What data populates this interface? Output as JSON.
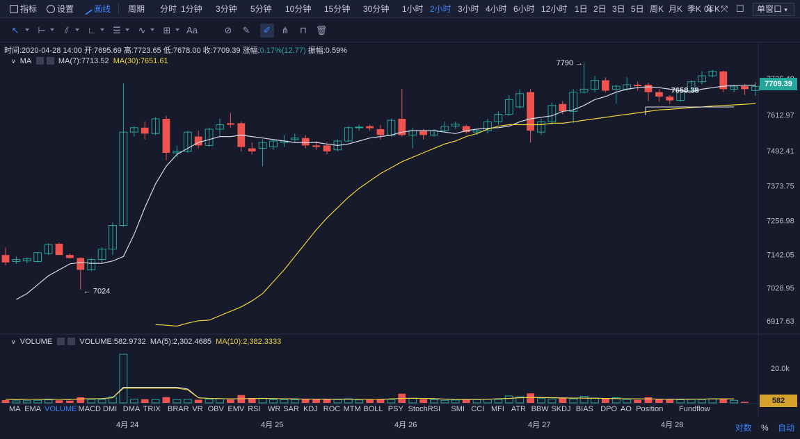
{
  "toolbar": {
    "indicators_label": "指标",
    "settings_label": "设置",
    "draw_label": "画线",
    "period_label": "周期",
    "intervals": [
      "分时",
      "1分钟",
      "3分钟",
      "5分钟",
      "10分钟",
      "15分钟",
      "30分钟",
      "1小时",
      "2小时",
      "3小时",
      "4小时",
      "6小时",
      "12小时",
      "1日",
      "2日",
      "3日",
      "5日",
      "周K",
      "月K",
      "季K",
      "年K"
    ],
    "active_interval": "2小时",
    "countdown": "0s",
    "window_mode": "单窗口"
  },
  "info_line": {
    "time": "时间:2020-04-28 14:00",
    "open": "开:7695.69",
    "high": "高:7723.65",
    "low": "低:7678.00",
    "close": "收:7709.39",
    "change_label": "涨幅:",
    "change_value": "0.17%(12.77)",
    "amplitude": "振幅:0.59%"
  },
  "ma_legend": {
    "name": "MA",
    "ma7": "MA(7):7713.52",
    "ma30": "MA(30):7651.61"
  },
  "volume_legend": {
    "name": "VOLUME",
    "volume": "VOLUME:582.9732",
    "ma5": "MA(5):2,302.4685",
    "ma10": "MA(10):2,382.3333"
  },
  "price_axis": [
    "7735.48",
    "7612.97",
    "7492.41",
    "7373.75",
    "7256.98",
    "7142.05",
    "7028.95",
    "6917.63"
  ],
  "last_price": "7709.39",
  "volume_axis": [
    "20.0k"
  ],
  "last_volume": "582",
  "annotations": {
    "high_label": "7790",
    "low_label": "7024",
    "overlap_label": "7658.38"
  },
  "indicator_tabs": [
    "MA",
    "EMA",
    "VOLUME",
    "MACD",
    "DMI",
    "DMA",
    "TRIX",
    "BRAR",
    "VR",
    "OBV",
    "EMV",
    "RSI",
    "WR",
    "SAR",
    "KDJ",
    "ROC",
    "MTM",
    "BOLL",
    "PSY",
    "StochRSI",
    "SMI",
    "CCI",
    "MFI",
    "ATR",
    "BBW",
    "SKDJ",
    "BIAS",
    "DPO",
    "AO",
    "Position",
    "Fundflow"
  ],
  "active_indicator": "VOLUME",
  "date_labels": [
    "4月 24",
    "4月 25",
    "4月 26",
    "4月 27",
    "4月 28"
  ],
  "bottom_right": {
    "log": "对数",
    "percent": "%",
    "auto": "自动"
  },
  "colors": {
    "up": "#26a69a",
    "down": "#ef5350",
    "ma7": "#d8dbe6",
    "ma30": "#f0d43a",
    "accent": "#3b82f6",
    "bg": "#161a2b"
  },
  "chart_data": {
    "type": "candlestick",
    "price_range": [
      6880,
      7790
    ],
    "candles": [
      {
        "o": 7140,
        "h": 7165,
        "l": 7105,
        "c": 7115
      },
      {
        "o": 7118,
        "h": 7135,
        "l": 7110,
        "c": 7125
      },
      {
        "o": 7120,
        "h": 7132,
        "l": 7112,
        "c": 7128
      },
      {
        "o": 7118,
        "h": 7150,
        "l": 7115,
        "c": 7148
      },
      {
        "o": 7145,
        "h": 7180,
        "l": 7140,
        "c": 7175
      },
      {
        "o": 7178,
        "h": 7182,
        "l": 7140,
        "c": 7140
      },
      {
        "o": 7140,
        "h": 7145,
        "l": 7128,
        "c": 7130
      },
      {
        "o": 7130,
        "h": 7132,
        "l": 7024,
        "c": 7090
      },
      {
        "o": 7090,
        "h": 7130,
        "l": 7085,
        "c": 7125
      },
      {
        "o": 7125,
        "h": 7165,
        "l": 7115,
        "c": 7160
      },
      {
        "o": 7160,
        "h": 7250,
        "l": 7140,
        "c": 7240
      },
      {
        "o": 7240,
        "h": 7720,
        "l": 7235,
        "c": 7555
      },
      {
        "o": 7555,
        "h": 7575,
        "l": 7540,
        "c": 7570
      },
      {
        "o": 7570,
        "h": 7590,
        "l": 7530,
        "c": 7550
      },
      {
        "o": 7550,
        "h": 7605,
        "l": 7545,
        "c": 7600
      },
      {
        "o": 7600,
        "h": 7610,
        "l": 7460,
        "c": 7485
      },
      {
        "o": 7485,
        "h": 7510,
        "l": 7470,
        "c": 7490
      },
      {
        "o": 7490,
        "h": 7560,
        "l": 7485,
        "c": 7555
      },
      {
        "o": 7540,
        "h": 7560,
        "l": 7500,
        "c": 7510
      },
      {
        "o": 7510,
        "h": 7570,
        "l": 7505,
        "c": 7565
      },
      {
        "o": 7565,
        "h": 7600,
        "l": 7540,
        "c": 7580
      },
      {
        "o": 7585,
        "h": 7620,
        "l": 7570,
        "c": 7580
      },
      {
        "o": 7585,
        "h": 7590,
        "l": 7490,
        "c": 7505
      },
      {
        "o": 7500,
        "h": 7520,
        "l": 7480,
        "c": 7490
      },
      {
        "o": 7500,
        "h": 7530,
        "l": 7440,
        "c": 7520
      },
      {
        "o": 7505,
        "h": 7530,
        "l": 7495,
        "c": 7525
      },
      {
        "o": 7520,
        "h": 7545,
        "l": 7505,
        "c": 7525
      },
      {
        "o": 7530,
        "h": 7550,
        "l": 7520,
        "c": 7535
      },
      {
        "o": 7535,
        "h": 7545,
        "l": 7500,
        "c": 7510
      },
      {
        "o": 7510,
        "h": 7525,
        "l": 7495,
        "c": 7505
      },
      {
        "o": 7510,
        "h": 7520,
        "l": 7480,
        "c": 7490
      },
      {
        "o": 7495,
        "h": 7530,
        "l": 7490,
        "c": 7525
      },
      {
        "o": 7525,
        "h": 7575,
        "l": 7520,
        "c": 7570
      },
      {
        "o": 7570,
        "h": 7580,
        "l": 7560,
        "c": 7572
      },
      {
        "o": 7575,
        "h": 7580,
        "l": 7560,
        "c": 7568
      },
      {
        "o": 7565,
        "h": 7580,
        "l": 7530,
        "c": 7545
      },
      {
        "o": 7545,
        "h": 7600,
        "l": 7540,
        "c": 7595
      },
      {
        "o": 7600,
        "h": 7700,
        "l": 7540,
        "c": 7545
      },
      {
        "o": 7545,
        "h": 7570,
        "l": 7500,
        "c": 7560
      },
      {
        "o": 7560,
        "h": 7565,
        "l": 7530,
        "c": 7545
      },
      {
        "o": 7545,
        "h": 7565,
        "l": 7540,
        "c": 7560
      },
      {
        "o": 7560,
        "h": 7590,
        "l": 7555,
        "c": 7575
      },
      {
        "o": 7575,
        "h": 7590,
        "l": 7565,
        "c": 7582
      },
      {
        "o": 7575,
        "h": 7580,
        "l": 7550,
        "c": 7555
      },
      {
        "o": 7555,
        "h": 7565,
        "l": 7545,
        "c": 7560
      },
      {
        "o": 7560,
        "h": 7600,
        "l": 7550,
        "c": 7590
      },
      {
        "o": 7590,
        "h": 7625,
        "l": 7580,
        "c": 7615
      },
      {
        "o": 7615,
        "h": 7680,
        "l": 7610,
        "c": 7665
      },
      {
        "o": 7640,
        "h": 7700,
        "l": 7635,
        "c": 7685
      },
      {
        "o": 7690,
        "h": 7700,
        "l": 7520,
        "c": 7560
      },
      {
        "o": 7555,
        "h": 7600,
        "l": 7545,
        "c": 7590
      },
      {
        "o": 7590,
        "h": 7655,
        "l": 7580,
        "c": 7645
      },
      {
        "o": 7650,
        "h": 7660,
        "l": 7615,
        "c": 7625
      },
      {
        "o": 7625,
        "h": 7700,
        "l": 7585,
        "c": 7690
      },
      {
        "o": 7690,
        "h": 7790,
        "l": 7685,
        "c": 7700
      },
      {
        "o": 7700,
        "h": 7745,
        "l": 7690,
        "c": 7730
      },
      {
        "o": 7730,
        "h": 7740,
        "l": 7690,
        "c": 7695
      },
      {
        "o": 7700,
        "h": 7715,
        "l": 7650,
        "c": 7710
      },
      {
        "o": 7700,
        "h": 7740,
        "l": 7695,
        "c": 7715
      },
      {
        "o": 7715,
        "h": 7725,
        "l": 7695,
        "c": 7710
      },
      {
        "o": 7715,
        "h": 7722,
        "l": 7660,
        "c": 7690
      },
      {
        "o": 7690,
        "h": 7700,
        "l": 7658,
        "c": 7675
      },
      {
        "o": 7675,
        "h": 7680,
        "l": 7650,
        "c": 7662
      },
      {
        "o": 7662,
        "h": 7700,
        "l": 7658,
        "c": 7695
      },
      {
        "o": 7695,
        "h": 7730,
        "l": 7690,
        "c": 7725
      },
      {
        "o": 7725,
        "h": 7760,
        "l": 7715,
        "c": 7745
      },
      {
        "o": 7745,
        "h": 7765,
        "l": 7740,
        "c": 7760
      },
      {
        "o": 7760,
        "h": 7762,
        "l": 7690,
        "c": 7700
      },
      {
        "o": 7700,
        "h": 7715,
        "l": 7690,
        "c": 7708
      },
      {
        "o": 7710,
        "h": 7718,
        "l": 7680,
        "c": 7700
      },
      {
        "o": 7695.69,
        "h": 7723.65,
        "l": 7678,
        "c": 7709.39
      }
    ],
    "ma7": [
      6990,
      7010,
      7040,
      7070,
      7090,
      7110,
      7115,
      7112,
      7112,
      7120,
      7135,
      7210,
      7300,
      7380,
      7440,
      7480,
      7500,
      7520,
      7530,
      7540,
      7540,
      7545,
      7540,
      7535,
      7530,
      7525,
      7520,
      7520,
      7520,
      7515,
      7510,
      7515,
      7525,
      7535,
      7540,
      7545,
      7555,
      7560,
      7560,
      7560,
      7555,
      7550,
      7560,
      7565,
      7568,
      7570,
      7575,
      7590,
      7600,
      7605,
      7610,
      7625,
      7630,
      7645,
      7665,
      7675,
      7690,
      7700,
      7705,
      7708,
      7705,
      7700,
      7695,
      7690,
      7700,
      7705,
      7710,
      7712,
      7713,
      7713.52
    ],
    "ma30": [
      6905,
      6903,
      6900,
      6910,
      6918,
      6920,
      6935,
      6950,
      6965,
      6985,
      7010,
      7050,
      7090,
      7135,
      7180,
      7225,
      7265,
      7300,
      7335,
      7365,
      7390,
      7415,
      7435,
      7455,
      7470,
      7485,
      7500,
      7515,
      7525,
      7540,
      7550,
      7565,
      7575,
      7580,
      7580,
      7580,
      7580,
      7585,
      7585,
      7590,
      7595,
      7600,
      7605,
      7610,
      7615,
      7620,
      7625,
      7630,
      7632,
      7635,
      7638,
      7640,
      7643,
      7645,
      7647,
      7649,
      7651.61
    ],
    "volumes": [
      1600,
      1200,
      1300,
      1500,
      1700,
      1500,
      1300,
      3200,
      2000,
      2000,
      3500,
      28000,
      2200,
      2100,
      1900,
      3300,
      1900,
      2000,
      1800,
      2100,
      2400,
      1900,
      4500,
      2800,
      2700,
      1900,
      1800,
      1800,
      2300,
      2200,
      2200,
      1900,
      2400,
      1700,
      1800,
      2300,
      2000,
      5300,
      2600,
      2100,
      1800,
      1500,
      1600,
      2000,
      1800,
      2100,
      2000,
      4000,
      3500,
      5500,
      2500,
      2200,
      2800,
      2300,
      3800,
      2800,
      2400,
      3000,
      2000,
      1700,
      3200,
      2000,
      1800,
      1800,
      2000,
      1900,
      2400,
      2100,
      1500,
      582
    ],
    "volume_ma": [
      2000,
      1900,
      2000,
      2000,
      2100,
      2000,
      1900,
      2300,
      2400,
      2500,
      3000,
      9000,
      9000,
      9000,
      9000,
      9000,
      9000,
      8000,
      3000,
      2600,
      2500,
      2300,
      2400,
      2500,
      2600,
      2500,
      2400,
      2300,
      2200,
      2200,
      2100,
      2100,
      2100,
      2000,
      2000,
      2000,
      2300,
      2600,
      2700,
      2600,
      2500,
      2200,
      2000,
      1900,
      2000,
      2100,
      2400,
      2600,
      3000,
      3200,
      3100,
      3000,
      2900,
      2800,
      2800,
      2700,
      2600,
      2500,
      2400,
      2300,
      2300,
      2200,
      2100,
      2100,
      2200,
      2200,
      2300,
      2300,
      2302
    ]
  }
}
